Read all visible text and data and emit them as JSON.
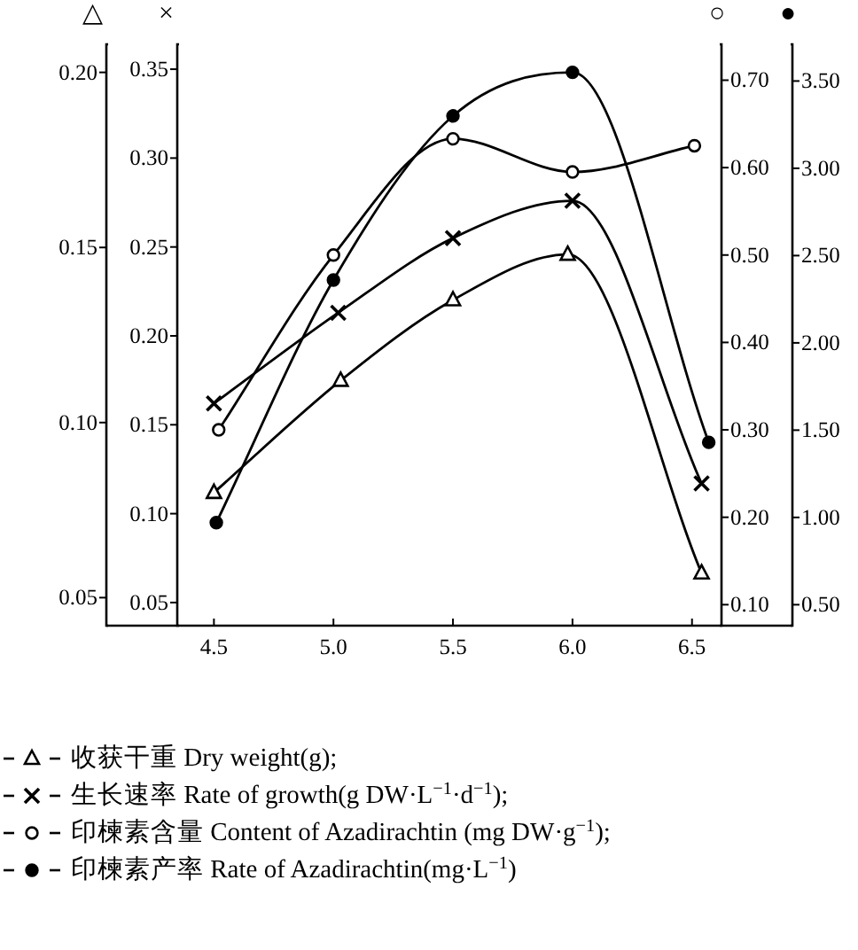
{
  "chart_data": [
    {
      "type": "line",
      "ylabel": "△",
      "y2label": "×",
      "xlim": [
        4.05,
        6.92
      ],
      "xticks": [
        {
          "value": 4.5,
          "label": "4.5"
        },
        {
          "value": 5.0,
          "label": "5.0"
        },
        {
          "value": 5.5,
          "label": "5.5"
        },
        {
          "value": 6.0,
          "label": "6.0"
        },
        {
          "value": 6.5,
          "label": "6.5"
        }
      ],
      "ylim": [
        0.042,
        0.207
      ],
      "yticks": [
        {
          "value": 0.05,
          "label": "0.05"
        },
        {
          "value": 0.1,
          "label": "0.10"
        },
        {
          "value": 0.15,
          "label": "0.15"
        },
        {
          "value": 0.2,
          "label": "0.20"
        }
      ],
      "y2lim": [
        0.037,
        0.362
      ],
      "y2ticks": [
        {
          "value": 0.05,
          "label": "0.05"
        },
        {
          "value": 0.1,
          "label": "0.10"
        },
        {
          "value": 0.15,
          "label": "0.15"
        },
        {
          "value": 0.2,
          "label": "0.20"
        },
        {
          "value": 0.25,
          "label": "0.25"
        },
        {
          "value": 0.3,
          "label": "0.30"
        },
        {
          "value": 0.35,
          "label": "0.35"
        }
      ],
      "legend": "bottom",
      "series": [
        {
          "name": "收获干重 Dry weight(g);",
          "axis": "y",
          "marker": "triangle",
          "color": "#000000",
          "x": [
            4.5,
            5.03,
            5.5,
            5.98,
            6.54
          ],
          "values": [
            0.08,
            0.112,
            0.135,
            0.148,
            0.057
          ]
        },
        {
          "name": "生长速率 Rate of growth(g DW·L$^{−1}$·d$^{−1}$);",
          "axis": "y2",
          "marker": "cross",
          "color": "#000000",
          "x": [
            4.5,
            5.02,
            5.5,
            6.0,
            6.54
          ],
          "values": [
            0.162,
            0.213,
            0.255,
            0.276,
            0.117
          ]
        }
      ]
    },
    {
      "type": "line",
      "ylabel": "○",
      "y2label": "●",
      "xlim": [
        4.05,
        6.92
      ],
      "tick_labels": "y",
      "ylim": [
        0.076,
        0.737
      ],
      "yticks": [
        {
          "value": 0.1,
          "label": "0.10"
        },
        {
          "value": 0.2,
          "label": "0.20"
        },
        {
          "value": 0.3,
          "label": "0.30"
        },
        {
          "value": 0.4,
          "label": "0.40"
        },
        {
          "value": 0.5,
          "label": "0.50"
        },
        {
          "value": 0.6,
          "label": "0.60"
        },
        {
          "value": 0.7,
          "label": "0.70"
        }
      ],
      "y2lim": [
        0.38,
        3.69
      ],
      "y2ticks": [
        {
          "value": 0.5,
          "label": "0.50"
        },
        {
          "value": 1.0,
          "label": "1.00"
        },
        {
          "value": 1.5,
          "label": "1.50"
        },
        {
          "value": 2.0,
          "label": "2.00"
        },
        {
          "value": 2.5,
          "label": "2.50"
        },
        {
          "value": 3.0,
          "label": "3.00"
        },
        {
          "value": 3.5,
          "label": "3.50"
        }
      ],
      "legend": "bottom",
      "series": [
        {
          "name": "印楝素含量 Content of Azadirachtin (mg DW·g$^{−1}$);",
          "axis": "y",
          "marker": "circle",
          "color": "#000000",
          "x": [
            4.52,
            5.0,
            5.5,
            6.0,
            6.51
          ],
          "values": [
            0.3,
            0.5,
            0.633,
            0.595,
            0.625
          ]
        },
        {
          "name": "印楝素产率 Rate of Azadirachtin(mg·L$^{−1}$)",
          "axis": "y2",
          "marker": "circle",
          "color": "#000000",
          "x": [
            4.51,
            5.0,
            5.5,
            6.0,
            6.57
          ],
          "values": [
            0.97,
            2.36,
            3.3,
            3.55,
            1.43
          ]
        }
      ]
    }
  ]
}
